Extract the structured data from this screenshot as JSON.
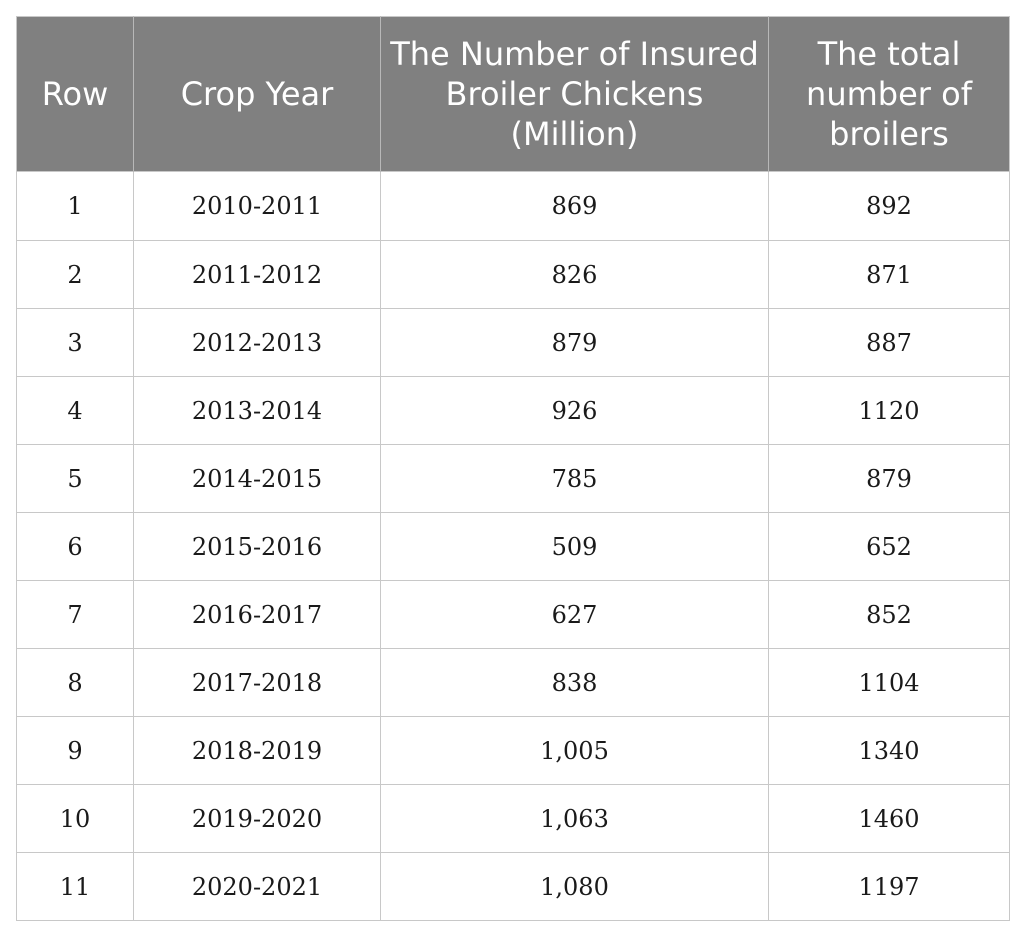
{
  "table": {
    "headers": [
      "Row",
      "Crop Year",
      "The Number of Insured Broiler Chickens (Million)",
      "The total number of broilers"
    ],
    "rows": [
      [
        "1",
        "2010-2011",
        "869",
        "892"
      ],
      [
        "2",
        "2011-2012",
        "826",
        "871"
      ],
      [
        "3",
        "2012-2013",
        "879",
        "887"
      ],
      [
        "4",
        "2013-2014",
        "926",
        "1120"
      ],
      [
        "5",
        "2014-2015",
        "785",
        "879"
      ],
      [
        "6",
        "2015-2016",
        "509",
        "652"
      ],
      [
        "7",
        "2016-2017",
        "627",
        "852"
      ],
      [
        "8",
        "2017-2018",
        "838",
        "1104"
      ],
      [
        "9",
        "2018-2019",
        "1,005",
        "1340"
      ],
      [
        "10",
        "2019-2020",
        "1,063",
        "1460"
      ],
      [
        "11",
        "2020-2021",
        "1,080",
        "1197"
      ]
    ]
  },
  "colors": {
    "header_bg": "#808080",
    "header_text": "#ffffff",
    "grid_line": "#c8c8c8"
  }
}
